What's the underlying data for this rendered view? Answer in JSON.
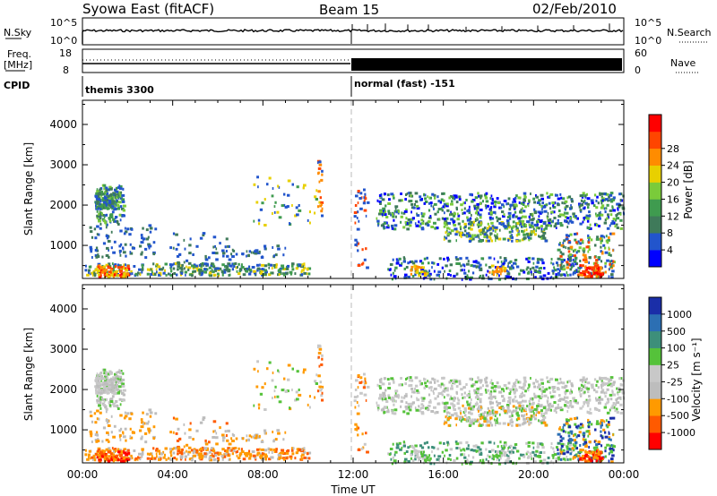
{
  "header": {
    "title": "Syowa East (fitACF)",
    "beam": "Beam 15",
    "date": "02/Feb/2010"
  },
  "panels": {
    "nsky": {
      "label": "N.Sky",
      "left_ticks": [
        "10^5",
        "10^0"
      ],
      "right_ticks": [
        "10^5",
        "10^0"
      ],
      "right_label": "N.Search"
    },
    "freq": {
      "label_line1": "Freq.",
      "label_line2": "[MHz]",
      "left_ticks": [
        "18",
        "8"
      ],
      "right_ticks": [
        "60",
        "0"
      ],
      "right_label": "Nave"
    },
    "cpid": {
      "label": "CPID",
      "modes": [
        "themis 3300",
        "normal (fast) -151"
      ]
    }
  },
  "colors": {
    "power": [
      "#0000ff",
      "#2255cc",
      "#3f7a5a",
      "#3f9b4f",
      "#7acb3a",
      "#e8d000",
      "#ff8c00",
      "#ff4500",
      "#ff0000"
    ],
    "velocity": [
      "#1a2ea8",
      "#2c6fb3",
      "#3d8f7a",
      "#55c23a",
      "#c8c8c8",
      "#bdbdbd",
      "#ff9a00",
      "#ff5a00",
      "#ff0000"
    ]
  },
  "chart_data": [
    {
      "type": "heatmap",
      "name": "power",
      "xlabel": "",
      "ylabel": "Slant Range [km]",
      "xlim": [
        "00:00",
        "24:00"
      ],
      "ylim": [
        180,
        4600
      ],
      "yticks": [
        "1000",
        "2000",
        "3000",
        "4000"
      ],
      "colorbar_label": "Power [dB]",
      "colorbar_ticks": [
        "4",
        "8",
        "12",
        "16",
        "20",
        "24",
        "28"
      ]
    },
    {
      "type": "heatmap",
      "name": "velocity",
      "xlabel": "Time UT",
      "ylabel": "Slant Range [km]",
      "xlim": [
        "00:00",
        "24:00"
      ],
      "ylim": [
        180,
        4600
      ],
      "xticks": [
        "00:00",
        "04:00",
        "08:00",
        "12:00",
        "16:00",
        "20:00",
        "00:00"
      ],
      "yticks": [
        "1000",
        "2000",
        "3000",
        "4000"
      ],
      "colorbar_label": "Velocity [m s⁻¹]",
      "colorbar_ticks": [
        "1000",
        "500",
        "100",
        "25",
        "-25",
        "-100",
        "-500",
        "-1000"
      ]
    }
  ]
}
